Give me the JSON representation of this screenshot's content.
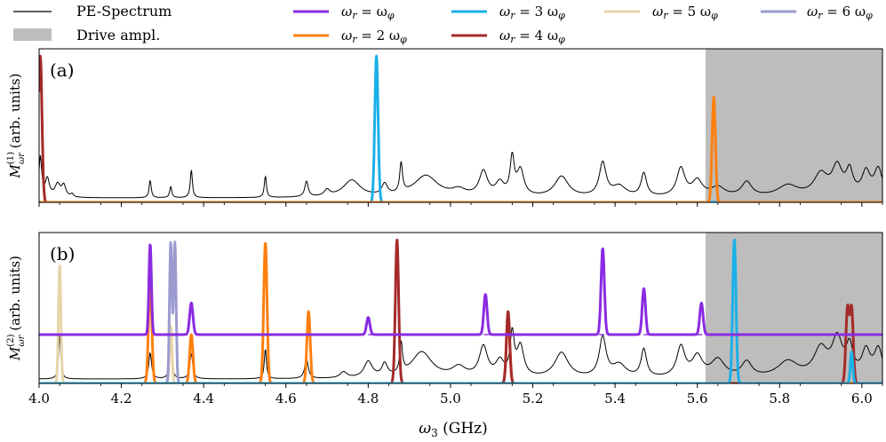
{
  "figure": {
    "xlabel_main": "ω",
    "xlabel_sub": "3",
    "xlabel_unit": " (GHz)"
  },
  "legend": [
    {
      "id": "pe",
      "label": "PE-Spectrum",
      "kind": "line",
      "color": "#000000"
    },
    {
      "id": "drive",
      "label": "Drive ampl.",
      "kind": "patch",
      "color": "#bdbdbd"
    },
    {
      "id": "r1",
      "label": "ωr = ωφ",
      "kind": "line",
      "color": "#8a2be2"
    },
    {
      "id": "r2",
      "label": "ωr = 2 ωφ",
      "kind": "line",
      "color": "#ff7f0e"
    },
    {
      "id": "r3",
      "label": "ωr = 3 ωφ",
      "kind": "line",
      "color": "#1ab0e8"
    },
    {
      "id": "r4",
      "label": "ωr = 4 ωφ",
      "kind": "line",
      "color": "#a52a2a"
    },
    {
      "id": "r5",
      "label": "ωr = 5 ωφ",
      "kind": "line",
      "color": "#e6d5a8"
    },
    {
      "id": "r6",
      "label": "ωr = 6 ωφ",
      "kind": "line",
      "color": "#9b9bd0"
    }
  ],
  "chart_data": [
    {
      "type": "line",
      "panel": "(a)",
      "ylabel": "M(1) ωr (arb. units)",
      "xlim": [
        4.0,
        6.05
      ],
      "ylim": [
        0,
        1.05
      ],
      "xticks": [
        "4.0",
        "4.2",
        "4.4",
        "4.6",
        "4.8",
        "5.0",
        "5.2",
        "5.4",
        "5.6",
        "5.8",
        "6.0"
      ],
      "drive_region": [
        5.62,
        6.05
      ],
      "pe_baseline": 0.03,
      "pe_peaks": [
        [
          4.003,
          0.78,
          0.004
        ],
        [
          4.02,
          0.35,
          0.006
        ],
        [
          4.045,
          0.25,
          0.008
        ],
        [
          4.06,
          0.22,
          0.006
        ],
        [
          4.08,
          0.06,
          0.004
        ],
        [
          4.27,
          0.34,
          0.003
        ],
        [
          4.32,
          0.22,
          0.003
        ],
        [
          4.37,
          0.55,
          0.003
        ],
        [
          4.55,
          0.42,
          0.003
        ],
        [
          4.65,
          0.3,
          0.005
        ],
        [
          4.7,
          0.12,
          0.008
        ],
        [
          4.76,
          0.33,
          0.025
        ],
        [
          4.84,
          0.22,
          0.008
        ],
        [
          4.88,
          0.58,
          0.004
        ],
        [
          4.94,
          0.42,
          0.035
        ],
        [
          5.02,
          0.12,
          0.02
        ],
        [
          5.08,
          0.48,
          0.012
        ],
        [
          5.12,
          0.25,
          0.012
        ],
        [
          5.15,
          0.72,
          0.006
        ],
        [
          5.17,
          0.5,
          0.01
        ],
        [
          5.27,
          0.4,
          0.02
        ],
        [
          5.37,
          0.65,
          0.01
        ],
        [
          5.41,
          0.2,
          0.02
        ],
        [
          5.47,
          0.45,
          0.008
        ],
        [
          5.56,
          0.55,
          0.012
        ],
        [
          5.6,
          0.3,
          0.015
        ],
        [
          5.65,
          0.18,
          0.02
        ],
        [
          5.72,
          0.28,
          0.015
        ],
        [
          5.82,
          0.22,
          0.03
        ],
        [
          5.9,
          0.42,
          0.02
        ],
        [
          5.94,
          0.55,
          0.015
        ],
        [
          5.97,
          0.45,
          0.01
        ],
        [
          6.01,
          0.45,
          0.012
        ],
        [
          6.04,
          0.52,
          0.012
        ]
      ],
      "series": [
        {
          "id": "r4",
          "name": "ωr = 4 ωφ",
          "color": "#a52a2a",
          "peaks": [
            [
              4.003,
              1.0,
              0.004
            ]
          ],
          "baseline": null
        },
        {
          "id": "r3",
          "name": "ωr = 3 ωφ",
          "color": "#1ab0e8",
          "peaks": [
            [
              4.82,
              1.0,
              0.004
            ]
          ],
          "baseline": null
        },
        {
          "id": "r2",
          "name": "ωr = 2 ωφ",
          "color": "#ff7f0e",
          "peaks": [
            [
              5.64,
              0.72,
              0.004
            ]
          ],
          "baseline": null
        }
      ]
    },
    {
      "type": "line",
      "panel": "(b)",
      "ylabel": "M(2) ωr (arb. units)",
      "xlim": [
        4.0,
        6.05
      ],
      "ylim": [
        0,
        1.05
      ],
      "xticks": [
        "4.0",
        "4.2",
        "4.4",
        "4.6",
        "4.8",
        "5.0",
        "5.2",
        "5.4",
        "5.6",
        "5.8",
        "6.0"
      ],
      "drive_region": [
        5.62,
        6.05
      ],
      "pe_baseline": 0.03,
      "pe_peaks": [
        [
          4.05,
          0.88,
          0.003
        ],
        [
          4.27,
          0.52,
          0.004
        ],
        [
          4.32,
          0.88,
          0.003
        ],
        [
          4.37,
          0.5,
          0.004
        ],
        [
          4.55,
          0.6,
          0.003
        ],
        [
          4.65,
          0.4,
          0.005
        ],
        [
          4.74,
          0.12,
          0.01
        ],
        [
          4.8,
          0.32,
          0.012
        ],
        [
          4.84,
          0.25,
          0.008
        ],
        [
          4.88,
          0.6,
          0.004
        ],
        [
          4.93,
          0.52,
          0.03
        ],
        [
          5.02,
          0.2,
          0.02
        ],
        [
          5.08,
          0.6,
          0.012
        ],
        [
          5.12,
          0.3,
          0.012
        ],
        [
          5.15,
          0.82,
          0.006
        ],
        [
          5.17,
          0.6,
          0.01
        ],
        [
          5.27,
          0.5,
          0.02
        ],
        [
          5.37,
          0.78,
          0.01
        ],
        [
          5.41,
          0.25,
          0.02
        ],
        [
          5.47,
          0.55,
          0.008
        ],
        [
          5.56,
          0.6,
          0.012
        ],
        [
          5.6,
          0.4,
          0.015
        ],
        [
          5.65,
          0.35,
          0.02
        ],
        [
          5.72,
          0.3,
          0.015
        ],
        [
          5.82,
          0.32,
          0.03
        ],
        [
          5.9,
          0.55,
          0.02
        ],
        [
          5.94,
          0.72,
          0.015
        ],
        [
          5.97,
          0.55,
          0.01
        ],
        [
          6.01,
          0.5,
          0.012
        ],
        [
          6.04,
          0.55,
          0.012
        ]
      ],
      "series": [
        {
          "id": "r5",
          "name": "ωr = 5 ωφ",
          "color": "#e6d5a8",
          "peaks": [
            [
              4.05,
              0.82,
              0.003
            ],
            [
              4.32,
              0.4,
              0.003
            ],
            [
              5.14,
              0.5,
              0.004
            ]
          ],
          "baseline": null
        },
        {
          "id": "r6",
          "name": "ωr = 6 ωφ",
          "color": "#9b9bd0",
          "peaks": [
            [
              4.32,
              0.98,
              0.003
            ],
            [
              4.33,
              0.98,
              0.003
            ]
          ],
          "baseline": null
        },
        {
          "id": "r2",
          "name": "ωr = 2 ωφ",
          "color": "#ff7f0e",
          "peaks": [
            [
              4.27,
              0.72,
              0.004
            ],
            [
              4.37,
              0.34,
              0.004
            ],
            [
              4.55,
              0.98,
              0.004
            ],
            [
              4.655,
              0.5,
              0.004
            ],
            [
              5.14,
              0.48,
              0.004
            ]
          ],
          "baseline": null
        },
        {
          "id": "r4",
          "name": "ωr = 4 ωφ",
          "color": "#a52a2a",
          "peaks": [
            [
              4.87,
              1.0,
              0.004
            ],
            [
              5.14,
              0.5,
              0.004
            ],
            [
              5.965,
              0.52,
              0.004
            ],
            [
              5.975,
              0.52,
              0.004
            ]
          ],
          "baseline": null
        },
        {
          "id": "r3",
          "name": "ωr = 3 ωφ",
          "color": "#1ab0e8",
          "peaks": [
            [
              5.69,
              1.0,
              0.004
            ],
            [
              5.975,
              0.22,
              0.003
            ]
          ],
          "baseline": null
        },
        {
          "id": "r1",
          "name": "ωr = ωφ",
          "color": "#8a2be2",
          "peaks": [
            [
              4.27,
              0.63,
              0.003
            ],
            [
              4.37,
              0.22,
              0.004
            ],
            [
              4.8,
              0.12,
              0.004
            ],
            [
              5.085,
              0.28,
              0.004
            ],
            [
              5.37,
              0.6,
              0.004
            ],
            [
              5.47,
              0.32,
              0.004
            ],
            [
              5.61,
              0.22,
              0.004
            ]
          ],
          "baseline": 0.34,
          "dashed_baseline": 0.34,
          "dashed_from": 4.8
        }
      ]
    }
  ]
}
